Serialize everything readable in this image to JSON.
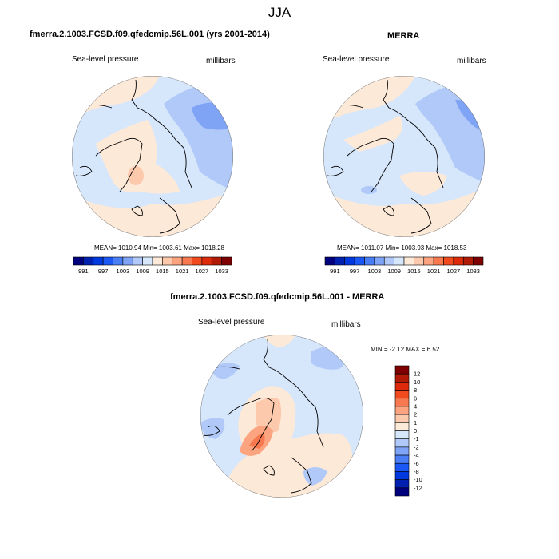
{
  "figure": {
    "title": "JJA"
  },
  "palette": {
    "slp": [
      "#00007f",
      "#0020b0",
      "#0038e0",
      "#1a57f5",
      "#4a7ef5",
      "#7fa3f5",
      "#b0c9f8",
      "#d6e6fb",
      "#fde9d8",
      "#fcc9ad",
      "#fca47f",
      "#f8784f",
      "#f04a1e",
      "#dc2a0a",
      "#b01a06",
      "#7f0000"
    ],
    "land_line": "#000000",
    "map_edge": "#666666"
  },
  "panels": [
    {
      "id": "model",
      "title": "fmerra.2.1003.FCSD.f09.qfedcmip.56L.001 (yrs 2001-2014)",
      "left_label": "Sea-level pressure",
      "right_label": "millibars",
      "stats": "MEAN= 1010.94  Min= 1003.61  Max= 1018.28",
      "colorbar": {
        "orientation": "horizontal",
        "levels": [
          991,
          994,
          997,
          1000,
          1003,
          1006,
          1009,
          1012,
          1015,
          1018,
          1021,
          1024,
          1027,
          1030,
          1033
        ],
        "labels": [
          "991",
          "997",
          "1003",
          "1009",
          "1015",
          "1021",
          "1027",
          "1033"
        ]
      }
    },
    {
      "id": "obs",
      "title": "MERRA",
      "left_label": "Sea-level pressure",
      "right_label": "millibars",
      "stats": "MEAN= 1011.07  Min= 1003.93  Max= 1018.53",
      "colorbar": {
        "orientation": "horizontal",
        "levels": [
          991,
          994,
          997,
          1000,
          1003,
          1006,
          1009,
          1012,
          1015,
          1018,
          1021,
          1024,
          1027,
          1030,
          1033
        ],
        "labels": [
          "991",
          "997",
          "1003",
          "1009",
          "1015",
          "1021",
          "1027",
          "1033"
        ]
      }
    },
    {
      "id": "diff",
      "title": "fmerra.2.1003.FCSD.f09.qfedcmip.56L.001 - MERRA",
      "left_label": "Sea-level pressure",
      "right_label": "millibars",
      "stats": "MIN =  -2.12 MAX =   6.52",
      "colorbar": {
        "orientation": "vertical",
        "levels": [
          12,
          10,
          8,
          6,
          4,
          2,
          1,
          0,
          -1,
          -2,
          -4,
          -6,
          -8,
          -10,
          -12
        ],
        "labels": [
          "12",
          "10",
          "8",
          "6",
          "4",
          "2",
          "1",
          "0",
          "-1",
          "-2",
          "-4",
          "-6",
          "-8",
          "-10",
          "-12"
        ]
      }
    }
  ]
}
